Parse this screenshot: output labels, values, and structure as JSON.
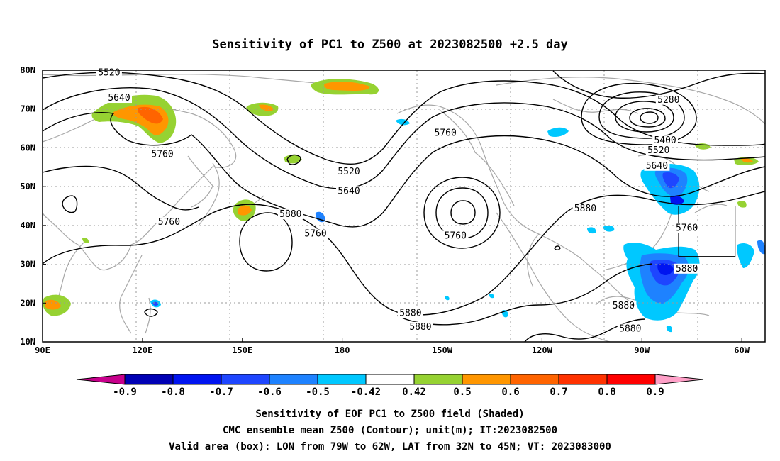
{
  "title": "Sensitivity of PC1 to Z500 at 2023082500 +2.5 day",
  "lon_ticks": [
    "90E",
    "120E",
    "150E",
    "180",
    "150W",
    "120W",
    "90W",
    "60W"
  ],
  "lat_ticks": [
    "80N",
    "70N",
    "60N",
    "50N",
    "40N",
    "30N",
    "20N",
    "10N"
  ],
  "contour_labels": [
    {
      "text": "5520",
      "lon": 110,
      "lat": 79
    },
    {
      "text": "5640",
      "lon": 113,
      "lat": 72.5
    },
    {
      "text": "5760",
      "lon": 126,
      "lat": 58
    },
    {
      "text": "5520",
      "lon": 182,
      "lat": 53.5
    },
    {
      "text": "5640",
      "lon": 182,
      "lat": 48.5
    },
    {
      "text": "5760",
      "lon": 172,
      "lat": 37.5
    },
    {
      "text": "5760",
      "lon": 211,
      "lat": 63.5
    },
    {
      "text": "5760",
      "lon": 214,
      "lat": 37
    },
    {
      "text": "5880",
      "lon": 164.5,
      "lat": 42.5
    },
    {
      "text": "5760",
      "lon": 128,
      "lat": 40.5
    },
    {
      "text": "5880",
      "lon": 253,
      "lat": 44
    },
    {
      "text": "5280",
      "lon": 278,
      "lat": 72
    },
    {
      "text": "5400",
      "lon": 277,
      "lat": 61.5
    },
    {
      "text": "5520",
      "lon": 275,
      "lat": 59
    },
    {
      "text": "5640",
      "lon": 274.5,
      "lat": 55
    },
    {
      "text": "5760",
      "lon": 283.5,
      "lat": 39
    },
    {
      "text": "5880",
      "lon": 283.5,
      "lat": 28.5
    },
    {
      "text": "5880",
      "lon": 200.5,
      "lat": 17
    },
    {
      "text": "5880",
      "lon": 203.5,
      "lat": 13.5
    },
    {
      "text": "5880",
      "lon": 264.5,
      "lat": 19
    },
    {
      "text": "5880",
      "lon": 266.5,
      "lat": 13
    }
  ],
  "colorbar": {
    "labels": [
      "-0.9",
      "-0.8",
      "-0.7",
      "-0.6",
      "-0.5",
      "-0.42",
      "0.42",
      "0.5",
      "0.6",
      "0.7",
      "0.8",
      "0.9"
    ],
    "colors": [
      "#c8008c",
      "#0000b4",
      "#0014f0",
      "#1e46ff",
      "#1e82ff",
      "#00c8ff",
      "#ffffff",
      "#96d232",
      "#ff9600",
      "#ff6400",
      "#ff3200",
      "#ff0000",
      "#ffa0c8"
    ]
  },
  "caption": {
    "line1": "Sensitivity of EOF PC1 to Z500 field (Shaded)",
    "line2": "CMC ensemble mean Z500 (Contour); unit(m); IT:2023082500",
    "line3": "Valid area (box): LON from 79W to 62W, LAT from 32N to 45N; VT: 2023083000"
  },
  "valid_box": {
    "lon_from": 281,
    "lon_to": 298,
    "lat_from": 32,
    "lat_to": 45
  }
}
